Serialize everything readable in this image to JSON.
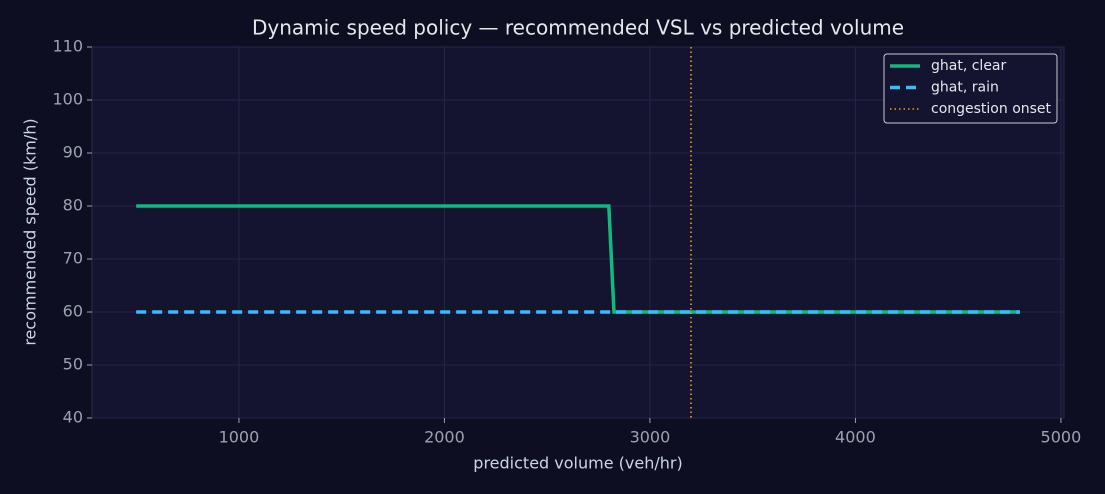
{
  "chart_data": {
    "type": "line",
    "title": "Dynamic speed policy — recommended VSL vs predicted volume",
    "x_label": "predicted volume (veh/hr)",
    "y_label": "recommended speed (km/h)",
    "series": [
      {
        "name": "ghat, clear",
        "color": "#10b981",
        "dash": "solid",
        "x": [
          500,
          2800,
          2825,
          4800
        ],
        "values": [
          80,
          80,
          60,
          60
        ]
      },
      {
        "name": "ghat, rain",
        "color": "#38bdf8",
        "dash": "dashed",
        "x": [
          500,
          4800
        ],
        "values": [
          60,
          60
        ]
      }
    ],
    "vline": {
      "name": "congestion onset",
      "color": "#f59e0b",
      "x": 3200
    },
    "xlim": [
      285,
      5015
    ],
    "xticks": [
      1000,
      2000,
      3000,
      4000,
      5000
    ],
    "ylim": [
      40,
      110
    ],
    "yticks": [
      40,
      50,
      60,
      70,
      80,
      90,
      100,
      110
    ],
    "grid": true,
    "legend": "upper right"
  }
}
